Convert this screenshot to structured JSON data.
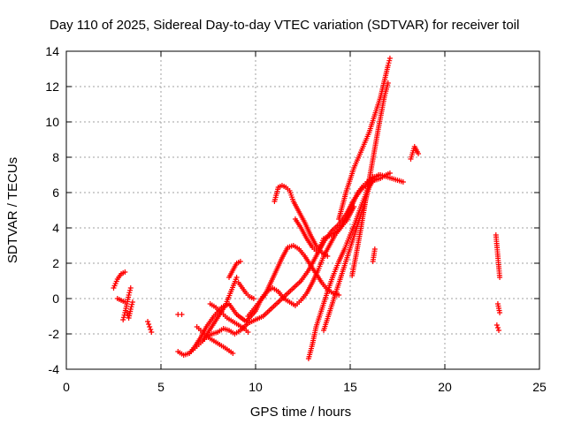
{
  "chart_data": {
    "type": "scatter",
    "title": "Day 110 of 2025, Sidereal Day-to-day VTEC variation (SDTVAR) for receiver toil",
    "xlabel": "GPS time / hours",
    "ylabel": "SDTVAR / TECUs",
    "xlim": [
      0,
      25
    ],
    "ylim": [
      -4,
      14
    ],
    "xticks": [
      "0",
      "5",
      "10",
      "15",
      "20",
      "25"
    ],
    "yticks": [
      "-4",
      "-2",
      "0",
      "2",
      "4",
      "6",
      "8",
      "10",
      "12",
      "14"
    ],
    "grid": true,
    "marker": "+",
    "color": "#ff0000",
    "segments": [
      {
        "x": [
          2.5,
          2.7,
          2.9,
          3.1
        ],
        "y": [
          0.6,
          1.1,
          1.4,
          1.5
        ]
      },
      {
        "x": [
          2.7,
          2.9,
          3.1
        ],
        "y": [
          0.0,
          -0.1,
          -0.2
        ]
      },
      {
        "x": [
          3.0,
          3.1,
          3.2,
          3.3,
          3.4
        ],
        "y": [
          -1.2,
          -0.8,
          -0.3,
          0.2,
          0.6
        ]
      },
      {
        "x": [
          3.2,
          3.3,
          3.4,
          3.5
        ],
        "y": [
          -0.8,
          -1.1,
          -0.6,
          -0.2
        ]
      },
      {
        "x": [
          4.3,
          4.4,
          4.5
        ],
        "y": [
          -1.3,
          -1.6,
          -1.9
        ]
      },
      {
        "x": [
          5.9,
          6.1
        ],
        "y": [
          -0.9,
          -0.9
        ]
      },
      {
        "x": [
          5.9,
          6.2,
          6.5,
          6.8,
          7.1,
          7.4,
          7.8,
          8.2,
          8.6,
          9.0,
          9.5,
          10.0,
          10.3,
          10.6,
          10.9,
          11.2,
          11.5,
          11.8,
          12.1,
          12.4,
          12.7,
          13.0,
          13.3,
          13.6,
          13.9,
          14.2,
          14.5,
          14.8,
          15.1,
          15.4,
          15.7,
          16.0,
          16.3,
          16.6,
          16.9,
          17.2,
          17.5,
          17.8
        ],
        "y": [
          -3.0,
          -3.2,
          -3.1,
          -2.7,
          -2.2,
          -1.6,
          -1.0,
          -0.5,
          -0.3,
          -0.9,
          -1.3,
          -0.7,
          0.0,
          0.4,
          0.6,
          0.4,
          0.0,
          -0.2,
          -0.4,
          -0.1,
          0.3,
          0.9,
          1.6,
          2.4,
          3.0,
          3.6,
          4.0,
          4.6,
          5.3,
          6.0,
          6.4,
          6.7,
          6.9,
          7.0,
          6.9,
          6.8,
          6.7,
          6.6
        ]
      },
      {
        "x": [
          6.5,
          6.8,
          7.1,
          7.4,
          7.7,
          8.0,
          8.3,
          8.6,
          8.9,
          9.2,
          9.6,
          10.0,
          10.4,
          10.8,
          11.2,
          11.6,
          12.0,
          12.4,
          12.8,
          13.2,
          13.6,
          14.0,
          14.4,
          14.8,
          15.2,
          15.6,
          16.0,
          16.3,
          16.6,
          16.9,
          17.1
        ],
        "y": [
          -3.1,
          -2.8,
          -2.5,
          -2.2,
          -2.0,
          -1.9,
          -1.7,
          -1.8,
          -2.0,
          -1.8,
          -1.4,
          -1.2,
          -1.0,
          -0.6,
          -0.2,
          0.2,
          0.6,
          1.0,
          1.6,
          2.4,
          3.2,
          3.8,
          4.2,
          4.8,
          5.6,
          6.2,
          6.5,
          6.7,
          6.8,
          7.0,
          7.1
        ]
      },
      {
        "x": [
          6.9,
          7.2,
          7.5,
          7.8,
          8.1,
          8.4,
          8.8
        ],
        "y": [
          -1.6,
          -1.9,
          -2.2,
          -2.4,
          -2.6,
          -2.8,
          -3.1
        ]
      },
      {
        "x": [
          7.2,
          7.5,
          7.8,
          8.1,
          8.4,
          8.7,
          9.0
        ],
        "y": [
          -2.4,
          -1.9,
          -1.4,
          -0.9,
          -0.4,
          0.4,
          1.2
        ]
      },
      {
        "x": [
          8.6,
          8.8,
          9.0,
          9.2
        ],
        "y": [
          1.2,
          1.6,
          2.0,
          2.1
        ]
      },
      {
        "x": [
          7.6,
          7.9,
          8.2,
          8.5,
          8.8,
          9.1,
          9.4,
          9.6
        ],
        "y": [
          -0.3,
          -0.5,
          -0.8,
          -1.1,
          -1.3,
          -1.5,
          -1.7,
          -1.9
        ]
      },
      {
        "x": [
          9.1,
          9.3,
          9.5,
          9.7,
          9.9
        ],
        "y": [
          0.9,
          0.6,
          0.3,
          0.1,
          0.0
        ]
      },
      {
        "x": [
          9.6,
          9.9,
          10.2,
          10.5,
          10.8,
          11.1,
          11.4,
          11.7,
          12.0,
          12.3,
          12.6,
          12.9,
          13.2,
          13.5,
          13.8,
          14.1,
          14.4
        ],
        "y": [
          -1.0,
          -0.6,
          -0.2,
          0.2,
          0.9,
          1.6,
          2.3,
          2.9,
          3.0,
          2.8,
          2.4,
          1.9,
          1.4,
          0.9,
          0.5,
          0.3,
          0.2
        ]
      },
      {
        "x": [
          11.0,
          11.2,
          11.4,
          11.6,
          11.8,
          12.0,
          12.3,
          12.6,
          12.9,
          13.2,
          13.5,
          13.8
        ],
        "y": [
          5.5,
          6.3,
          6.4,
          6.3,
          6.1,
          5.5,
          4.9,
          4.3,
          3.6,
          3.0,
          2.6,
          2.4
        ]
      },
      {
        "x": [
          12.1,
          12.4,
          12.7,
          13.0,
          13.3,
          13.6,
          14.0,
          14.4,
          14.8,
          15.2
        ],
        "y": [
          4.5,
          4.0,
          3.4,
          2.9,
          2.6,
          3.4,
          3.6,
          3.9,
          4.4,
          5.2
        ]
      },
      {
        "x": [
          12.8,
          13.0,
          13.2,
          13.5,
          13.8,
          14.1,
          14.4,
          14.7,
          15.0,
          15.3,
          15.6,
          15.9,
          16.2,
          16.5
        ],
        "y": [
          -3.4,
          -2.6,
          -1.6,
          -0.6,
          0.4,
          1.3,
          2.1,
          2.8,
          3.6,
          4.4,
          5.3,
          6.1,
          6.7,
          7.0
        ]
      },
      {
        "x": [
          13.6,
          13.9,
          14.2,
          14.5,
          14.8,
          15.1,
          15.4,
          15.7,
          16.0,
          16.2
        ],
        "y": [
          -1.8,
          -0.8,
          0.2,
          1.2,
          2.2,
          3.2,
          4.2,
          5.2,
          6.3,
          6.9
        ]
      },
      {
        "x": [
          14.4,
          14.8,
          15.2,
          15.6,
          16.0,
          16.3,
          16.6,
          16.8,
          17.0,
          17.1
        ],
        "y": [
          4.5,
          6.1,
          7.4,
          8.4,
          9.4,
          10.4,
          11.4,
          12.3,
          13.2,
          13.6
        ]
      },
      {
        "x": [
          15.1,
          15.3,
          15.6,
          15.9,
          16.2,
          16.5,
          16.8,
          17.0
        ],
        "y": [
          1.3,
          2.4,
          4.2,
          6.1,
          7.9,
          9.7,
          11.4,
          12.2
        ]
      },
      {
        "x": [
          16.2,
          16.3
        ],
        "y": [
          2.1,
          2.8
        ]
      },
      {
        "x": [
          18.2,
          18.4,
          18.6
        ],
        "y": [
          7.9,
          8.6,
          8.2
        ]
      },
      {
        "x": [
          22.7,
          22.8,
          22.9
        ],
        "y": [
          3.6,
          2.4,
          1.2
        ]
      },
      {
        "x": [
          22.8,
          22.9
        ],
        "y": [
          -0.3,
          -0.8
        ]
      },
      {
        "x": [
          22.75,
          22.85
        ],
        "y": [
          -1.5,
          -1.8
        ]
      }
    ]
  }
}
